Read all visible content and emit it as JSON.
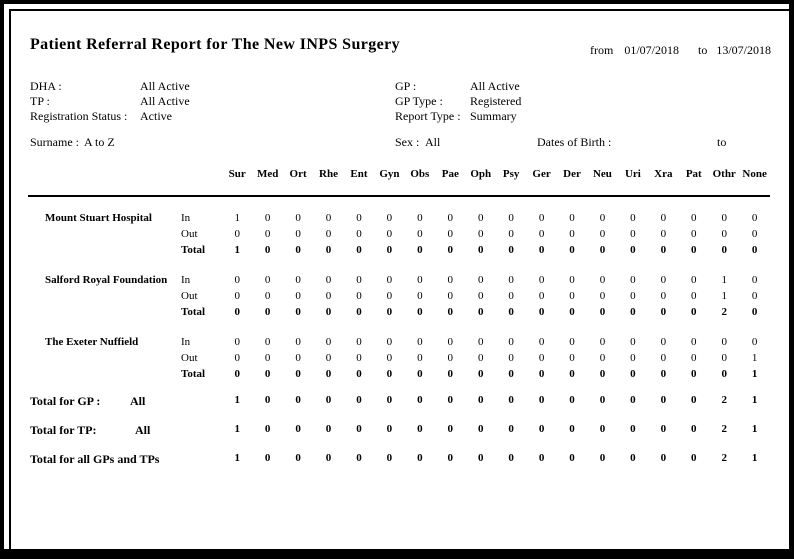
{
  "report": {
    "title": "Patient Referral Report for The New INPS Surgery",
    "period": {
      "from_label": "from",
      "from_date": "01/07/2018",
      "to_label": "to",
      "to_date": "13/07/2018"
    },
    "meta_left": [
      {
        "label": "DHA :",
        "value": "All Active"
      },
      {
        "label": "TP :",
        "value": "All Active"
      },
      {
        "label": "Registration Status :",
        "value": "Active"
      }
    ],
    "meta_right": [
      {
        "label": "GP :",
        "value": "All Active"
      },
      {
        "label": "GP Type :",
        "value": "Registered"
      },
      {
        "label": "Report Type :",
        "value": "Summary"
      }
    ],
    "criteria": {
      "surname_label": "Surname :",
      "surname_value": "A to Z",
      "sex_label": "Sex :",
      "sex_value": "All",
      "dob_label": "Dates of Birth :",
      "dob_to_label": "to"
    },
    "columns": [
      "Sur",
      "Med",
      "Ort",
      "Rhe",
      "Ent",
      "Gyn",
      "Obs",
      "Pae",
      "Oph",
      "Psy",
      "Ger",
      "Der",
      "Neu",
      "Uri",
      "Xra",
      "Pat",
      "Othr",
      "None"
    ],
    "facilities": [
      {
        "name": "Mount Stuart Hospital",
        "rows": [
          {
            "label": "In",
            "bold": false,
            "values": [
              1,
              0,
              0,
              0,
              0,
              0,
              0,
              0,
              0,
              0,
              0,
              0,
              0,
              0,
              0,
              0,
              0,
              0
            ]
          },
          {
            "label": "Out",
            "bold": false,
            "values": [
              0,
              0,
              0,
              0,
              0,
              0,
              0,
              0,
              0,
              0,
              0,
              0,
              0,
              0,
              0,
              0,
              0,
              0
            ]
          },
          {
            "label": "Total",
            "bold": true,
            "values": [
              1,
              0,
              0,
              0,
              0,
              0,
              0,
              0,
              0,
              0,
              0,
              0,
              0,
              0,
              0,
              0,
              0,
              0
            ]
          }
        ]
      },
      {
        "name": "Salford Royal Foundation",
        "rows": [
          {
            "label": "In",
            "bold": false,
            "values": [
              0,
              0,
              0,
              0,
              0,
              0,
              0,
              0,
              0,
              0,
              0,
              0,
              0,
              0,
              0,
              0,
              1,
              0
            ]
          },
          {
            "label": "Out",
            "bold": false,
            "values": [
              0,
              0,
              0,
              0,
              0,
              0,
              0,
              0,
              0,
              0,
              0,
              0,
              0,
              0,
              0,
              0,
              1,
              0
            ]
          },
          {
            "label": "Total",
            "bold": true,
            "values": [
              0,
              0,
              0,
              0,
              0,
              0,
              0,
              0,
              0,
              0,
              0,
              0,
              0,
              0,
              0,
              0,
              2,
              0
            ]
          }
        ]
      },
      {
        "name": "The Exeter Nuffield",
        "rows": [
          {
            "label": "In",
            "bold": false,
            "values": [
              0,
              0,
              0,
              0,
              0,
              0,
              0,
              0,
              0,
              0,
              0,
              0,
              0,
              0,
              0,
              0,
              0,
              0
            ]
          },
          {
            "label": "Out",
            "bold": false,
            "values": [
              0,
              0,
              0,
              0,
              0,
              0,
              0,
              0,
              0,
              0,
              0,
              0,
              0,
              0,
              0,
              0,
              0,
              1
            ]
          },
          {
            "label": "Total",
            "bold": true,
            "values": [
              0,
              0,
              0,
              0,
              0,
              0,
              0,
              0,
              0,
              0,
              0,
              0,
              0,
              0,
              0,
              0,
              0,
              1
            ]
          }
        ]
      }
    ],
    "totals": [
      {
        "label": "Total for GP :",
        "sublabel": "All",
        "values": [
          1,
          0,
          0,
          0,
          0,
          0,
          0,
          0,
          0,
          0,
          0,
          0,
          0,
          0,
          0,
          0,
          2,
          1
        ]
      },
      {
        "label": "Total for TP:",
        "sublabel": "All",
        "values": [
          1,
          0,
          0,
          0,
          0,
          0,
          0,
          0,
          0,
          0,
          0,
          0,
          0,
          0,
          0,
          0,
          2,
          1
        ]
      },
      {
        "label": "Total for all GPs and TPs",
        "sublabel": "",
        "values": [
          1,
          0,
          0,
          0,
          0,
          0,
          0,
          0,
          0,
          0,
          0,
          0,
          0,
          0,
          0,
          0,
          2,
          1
        ]
      }
    ],
    "colors": {
      "page_bg": "#ffffff",
      "frame": "#000000",
      "text": "#000000"
    }
  }
}
